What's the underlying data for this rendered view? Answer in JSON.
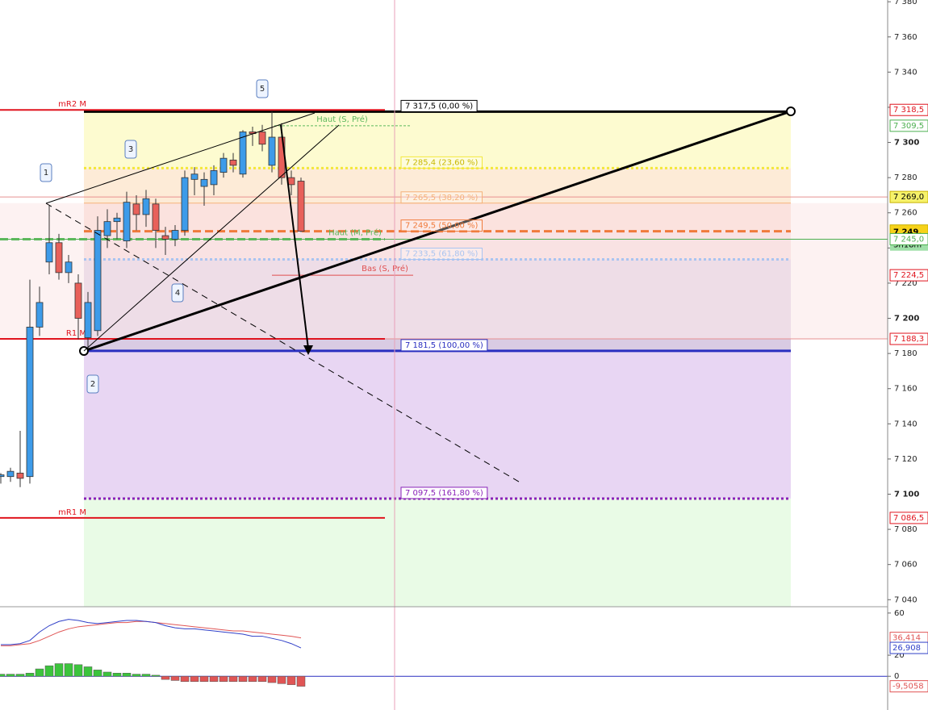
{
  "chart_data": [
    {
      "type": "candlestick",
      "open": [
        7110,
        7110,
        7112,
        7110,
        7195,
        7232,
        7243,
        7226,
        7220,
        7189,
        7193,
        7247,
        7255,
        7244,
        7265,
        7259,
        7265,
        7247,
        7245,
        7250,
        7279,
        7275,
        7276,
        7283,
        7290,
        7282,
        7306,
        7306,
        7287,
        7303,
        7280,
        7278
      ],
      "high": [
        7112,
        7115,
        7136,
        7222,
        7218,
        7264,
        7248,
        7236,
        7225,
        7215,
        7258,
        7262,
        7260,
        7272,
        7270,
        7273,
        7268,
        7252,
        7253,
        7284,
        7286,
        7283,
        7287,
        7294,
        7294,
        7307,
        7309,
        7310,
        7317.5,
        7311,
        7284,
        7280
      ],
      "low": [
        7106,
        7107,
        7104,
        7106,
        7190,
        7225,
        7222,
        7220,
        7188,
        7183,
        7190,
        7240,
        7245,
        7240,
        7250,
        7252,
        7240,
        7236,
        7241,
        7247,
        7270,
        7264,
        7270,
        7280,
        7283,
        7280,
        7298,
        7295,
        7283,
        7276,
        7270,
        7249
      ],
      "close": [
        7111,
        7113,
        7109,
        7195,
        7209,
        7243,
        7226,
        7232,
        7200,
        7209,
        7250,
        7255,
        7257,
        7266,
        7259,
        7268,
        7250,
        7245,
        7250,
        7280,
        7282,
        7279,
        7284,
        7291,
        7287,
        7306,
        7305,
        7299,
        7303,
        7280,
        7276,
        7249.5
      ],
      "up_color": "#3d9be9",
      "down_color": "#e8605a",
      "ylim": [
        7036,
        7381
      ],
      "yticks": [
        {
          "value": 7040,
          "label": "7 040"
        },
        {
          "value": 7060,
          "label": "7 060"
        },
        {
          "value": 7080,
          "label": "7 080"
        },
        {
          "value": 7100,
          "label": "7 100"
        },
        {
          "value": 7120,
          "label": "7 120"
        },
        {
          "value": 7140,
          "label": "7 140"
        },
        {
          "value": 7160,
          "label": "7 160"
        },
        {
          "value": 7180,
          "label": "7 180"
        },
        {
          "value": 7200,
          "label": "7 200"
        },
        {
          "value": 7220,
          "label": "7 220"
        },
        {
          "value": 7240,
          "label": "7 240"
        },
        {
          "value": 7260,
          "label": "7 260"
        },
        {
          "value": 7280,
          "label": "7 280"
        },
        {
          "value": 7300,
          "label": "7 300"
        },
        {
          "value": 7320,
          "label": "7 320"
        },
        {
          "value": 7340,
          "label": "7 340"
        },
        {
          "value": 7360,
          "label": "7 360"
        },
        {
          "value": 7380,
          "label": "7 380"
        }
      ],
      "pivots": [
        {
          "name": "mR2 M",
          "value": 7318.5
        },
        {
          "name": "R1 M",
          "value": 7188.3
        },
        {
          "name": "mR1 M",
          "value": 7086.5
        }
      ],
      "pivot_color": "#e0141e",
      "session_levels": [
        {
          "name": "Haut (S, Pré)",
          "value": 7309.5,
          "color": "#5cb85c"
        },
        {
          "name": "Haut (M, Pré)",
          "value": 7245,
          "color": "#5cb85c"
        },
        {
          "name": "Bas (S, Pré)",
          "value": 7224.5,
          "color": "#e05050"
        }
      ],
      "fib_levels": [
        {
          "value": 7317.5,
          "label": "7 317,5 (0,00 %)",
          "color": "#000000",
          "style": "solid",
          "zone_color": "#fdfbd0"
        },
        {
          "value": 7285.4,
          "label": "7 285,4 (23,60 %)",
          "color": "#f3e83a",
          "style": "dotted",
          "zone_color": "#fdebd7"
        },
        {
          "value": 7265.5,
          "label": "7 265,5 (38,20 %)",
          "color": "#f5b27a",
          "style": "solid",
          "zone_color": "#f9d6cc"
        },
        {
          "value": 7249.5,
          "label": "7 249,5 (50,00 %)",
          "color": "#f07a3a",
          "style": "dashed",
          "zone_color": "#f5d8da"
        },
        {
          "value": 7233.5,
          "label": "7 233,5 (61,80 %)",
          "color": "#aac4f0",
          "style": "dotted",
          "zone_color": "#d9cbe3"
        },
        {
          "value": 7181.5,
          "label": "7 181,5 (100,00 %)",
          "color": "#2a2fc0",
          "style": "solid",
          "zone_color": "#e8d6f3"
        },
        {
          "value": 7097.5,
          "label": "7 097,5 (161,80 %)",
          "color": "#8a22b8",
          "style": "dotted",
          "zone_color": "#e9fbe6"
        }
      ],
      "price_tags": [
        {
          "value": 7318.5,
          "label": "7 318,5",
          "color": "#e0141e",
          "bg": "#ffffff"
        },
        {
          "value": 7309.5,
          "label": "7 309,5",
          "color": "#4caf50",
          "bg": "#ffffff"
        },
        {
          "value": 7269,
          "label": "7 269,0",
          "color": "#000000",
          "bg": "#f6f26a"
        },
        {
          "value": 7249,
          "label": "7 249,",
          "color": "#000000",
          "bg": "#f6d21a"
        },
        {
          "value": 7245,
          "label": "7 245,0",
          "color": "#4caf50",
          "bg": "#ffffff"
        },
        {
          "value": 7224.5,
          "label": "7 224,5",
          "color": "#e0141e",
          "bg": "#ffffff"
        },
        {
          "value": 7188.3,
          "label": "7 188,3",
          "color": "#e0141e",
          "bg": "#ffffff"
        },
        {
          "value": 7086.5,
          "label": "7 086,5",
          "color": "#e0141e",
          "bg": "#ffffff"
        }
      ],
      "countdown": "3h18m",
      "wave_labels": [
        "1",
        "2",
        "3",
        "4",
        "5"
      ]
    },
    {
      "type": "oscillator",
      "ylim": [
        -32,
        66
      ],
      "yticks": [
        60,
        20,
        0
      ],
      "series": [
        {
          "color": "#e05555",
          "values": [
            29,
            29,
            30,
            31,
            34,
            38,
            42,
            45,
            47,
            48,
            49,
            50,
            51,
            51,
            52,
            52,
            51,
            50,
            49,
            48,
            47,
            46,
            45,
            44,
            43,
            43,
            42,
            41,
            40,
            39,
            38,
            36.414
          ],
          "value_label": "36,414"
        },
        {
          "color": "#3040c8",
          "values": [
            30,
            30,
            31,
            34,
            42,
            48,
            52,
            54,
            53,
            51,
            50,
            51,
            52,
            53,
            53,
            52,
            51,
            48,
            46,
            45,
            45,
            44,
            43,
            42,
            41,
            40,
            38,
            38,
            36,
            34,
            31,
            26.908
          ],
          "value_label": "26,908"
        }
      ],
      "histogram": {
        "values": [
          2,
          2,
          2,
          3,
          7,
          10,
          12,
          12,
          11,
          9,
          6,
          4,
          3,
          3,
          2,
          2,
          1,
          -3,
          -4,
          -5,
          -5,
          -5,
          -5,
          -5,
          -5,
          -5,
          -5,
          -5,
          -6,
          -7,
          -8,
          -9.5058
        ],
        "value_label": "-9,5058",
        "pos_color": "#3cc43c",
        "neg_color": "#e05555"
      }
    }
  ]
}
